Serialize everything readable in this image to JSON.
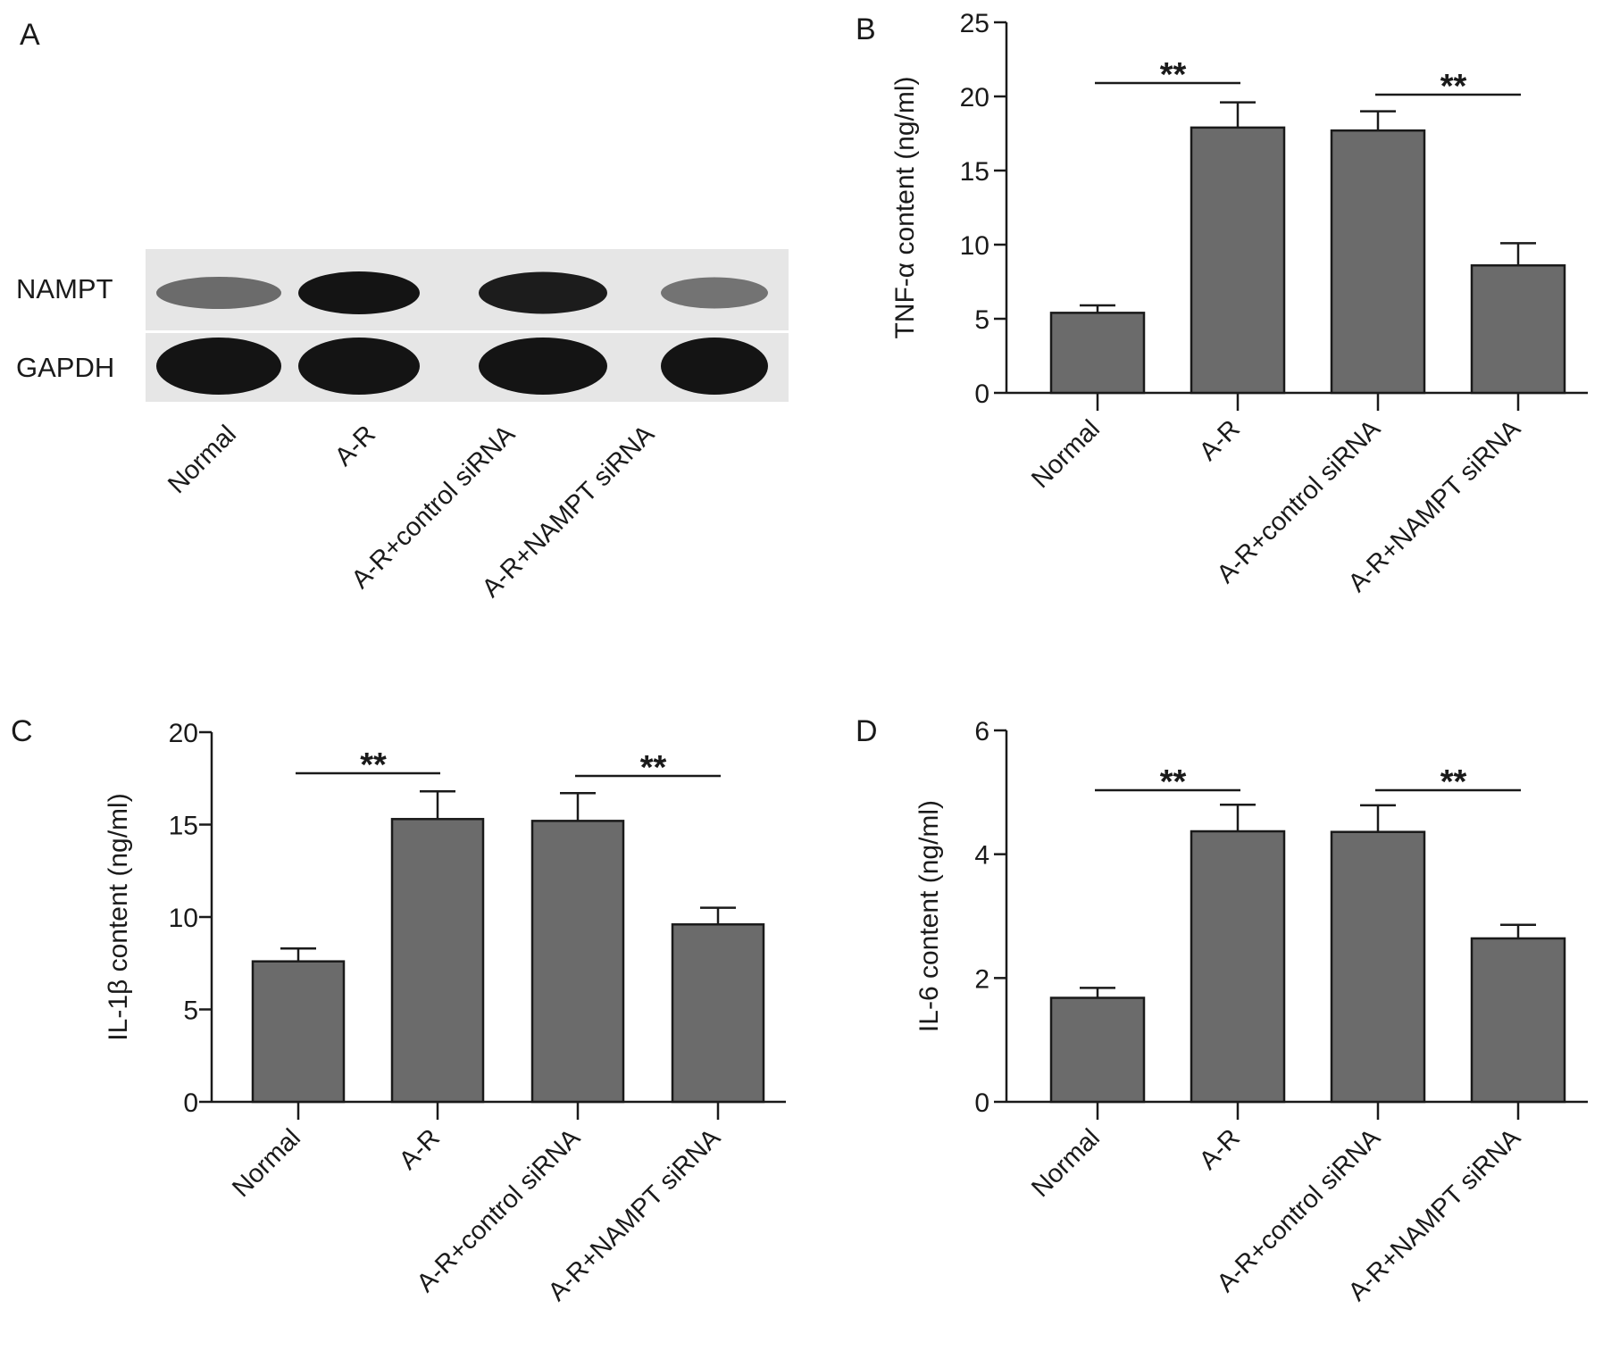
{
  "panel_a": {
    "label": "A",
    "row_labels": [
      "NAMPT",
      "GAPDH"
    ],
    "lanes": [
      "Normal",
      "A-R",
      "A-R+control siRNA",
      "A-R+NAMPT siRNA"
    ],
    "band_intensity": {
      "NAMPT": [
        0.45,
        1.0,
        0.95,
        0.4
      ],
      "GAPDH": [
        1.0,
        1.0,
        1.0,
        1.0
      ]
    }
  },
  "colors": {
    "bar_fill": "#6b6b6b",
    "axis": "#1a1a1a",
    "blot_bg": "#e6e6e6",
    "band": "#141414"
  },
  "chart_data": [
    {
      "panel": "B",
      "type": "bar",
      "categories": [
        "Normal",
        "A-R",
        "A-R+control siRNA",
        "A-R+NAMPT siRNA"
      ],
      "values": [
        5.4,
        17.9,
        17.7,
        8.6
      ],
      "errors": [
        0.5,
        1.7,
        1.3,
        1.5
      ],
      "ylabel": "TNF-α content (ng/ml)",
      "ylim": [
        0,
        25
      ],
      "yticks": [
        0,
        5,
        10,
        15,
        20,
        25
      ],
      "significance": [
        {
          "from": 0,
          "to": 1,
          "label": "**"
        },
        {
          "from": 2,
          "to": 3,
          "label": "**"
        }
      ]
    },
    {
      "panel": "C",
      "type": "bar",
      "categories": [
        "Normal",
        "A-R",
        "A-R+control siRNA",
        "A-R+NAMPT siRNA"
      ],
      "values": [
        7.6,
        15.3,
        15.2,
        9.6
      ],
      "errors": [
        0.7,
        1.5,
        1.5,
        0.9
      ],
      "ylabel": "IL-1β content (ng/ml)",
      "ylim": [
        0,
        20
      ],
      "yticks": [
        0,
        5,
        10,
        15,
        20
      ],
      "significance": [
        {
          "from": 0,
          "to": 1,
          "label": "**"
        },
        {
          "from": 2,
          "to": 3,
          "label": "**"
        }
      ]
    },
    {
      "panel": "D",
      "type": "bar",
      "categories": [
        "Normal",
        "A-R",
        "A-R+control siRNA",
        "A-R+NAMPT siRNA"
      ],
      "values": [
        1.68,
        4.37,
        4.36,
        2.64
      ],
      "errors": [
        0.16,
        0.43,
        0.43,
        0.22
      ],
      "ylabel": "IL-6 content (ng/ml)",
      "ylim": [
        0,
        6
      ],
      "yticks": [
        0,
        2,
        4,
        6
      ],
      "significance": [
        {
          "from": 0,
          "to": 1,
          "label": "**"
        },
        {
          "from": 2,
          "to": 3,
          "label": "**"
        }
      ]
    }
  ]
}
